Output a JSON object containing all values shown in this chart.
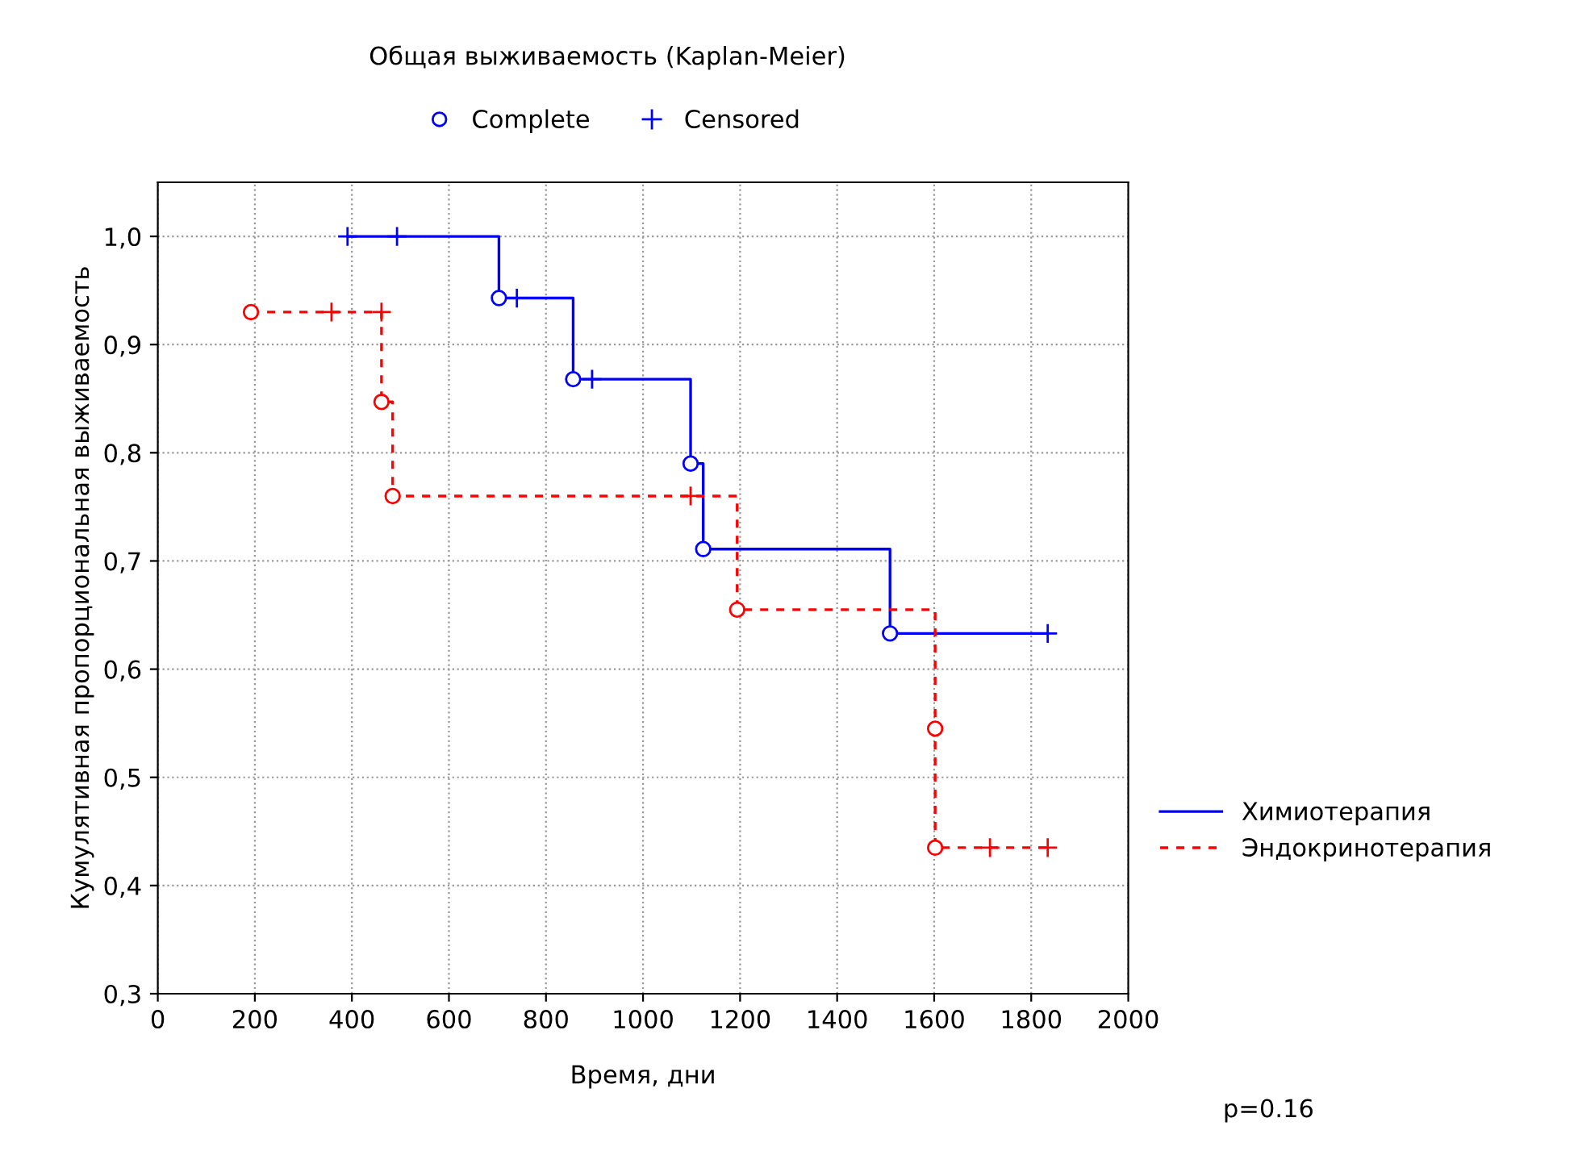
{
  "chart_data": {
    "type": "step",
    "title": "Общая выживаемость (Kaplan-Meier)",
    "xlabel": "Время, дни",
    "ylabel": "Кумулятивная пропорциональная выживаемость",
    "xlim": [
      0,
      2000
    ],
    "ylim": [
      0.3,
      1.05
    ],
    "xticks": [
      0,
      200,
      400,
      600,
      800,
      1000,
      1200,
      1400,
      1600,
      1800,
      2000
    ],
    "yticks": [
      {
        "value": 0.3,
        "label": "0,3"
      },
      {
        "value": 0.4,
        "label": "0,4"
      },
      {
        "value": 0.5,
        "label": "0,5"
      },
      {
        "value": 0.6,
        "label": "0,6"
      },
      {
        "value": 0.7,
        "label": "0,7"
      },
      {
        "value": 0.8,
        "label": "0,8"
      },
      {
        "value": 0.9,
        "label": "0,9"
      },
      {
        "value": 1.0,
        "label": "1,0"
      }
    ],
    "grid": true,
    "legend": "right",
    "series": [
      {
        "type": "step",
        "name": "Химиотерапия",
        "color": "#0000ff",
        "line_style": "solid",
        "x": [
          391,
          703,
          856,
          1098,
          1124,
          1509,
          1834
        ],
        "values": [
          1.0,
          0.943,
          0.868,
          0.79,
          0.711,
          0.633,
          0.633
        ]
      },
      {
        "type": "step",
        "name": "Эндокринотерапия",
        "color": "#ff0000",
        "line_style": "dashed",
        "x": [
          192,
          461,
          484,
          1194,
          1602,
          1834
        ],
        "values": [
          0.93,
          0.847,
          0.76,
          0.655,
          0.435,
          0.435
        ]
      },
      {
        "type": "scatter",
        "name": "Complete",
        "color": "#0000ff",
        "marker": "circle",
        "x": [
          703,
          856,
          1098,
          1124,
          1509
        ],
        "values": [
          0.943,
          0.868,
          0.79,
          0.711,
          0.633
        ]
      },
      {
        "type": "scatter",
        "color": "#ff0000",
        "marker": "circle",
        "x": [
          192,
          461,
          484,
          1194,
          1602,
          1602
        ],
        "values": [
          0.93,
          0.847,
          0.76,
          0.655,
          0.545,
          0.435
        ]
      },
      {
        "type": "scatter",
        "name": "Censored",
        "color": "#0000ff",
        "marker": "cross",
        "x": [
          391,
          493,
          740,
          895,
          1834
        ],
        "values": [
          1.0,
          1.0,
          0.943,
          0.868,
          0.633
        ]
      },
      {
        "type": "scatter",
        "color": "#ff0000",
        "marker": "cross",
        "x": [
          358,
          461,
          1098,
          1715,
          1834
        ],
        "values": [
          0.93,
          0.93,
          0.76,
          0.435,
          0.435
        ]
      }
    ],
    "annotations": [
      "p=0.16"
    ]
  }
}
